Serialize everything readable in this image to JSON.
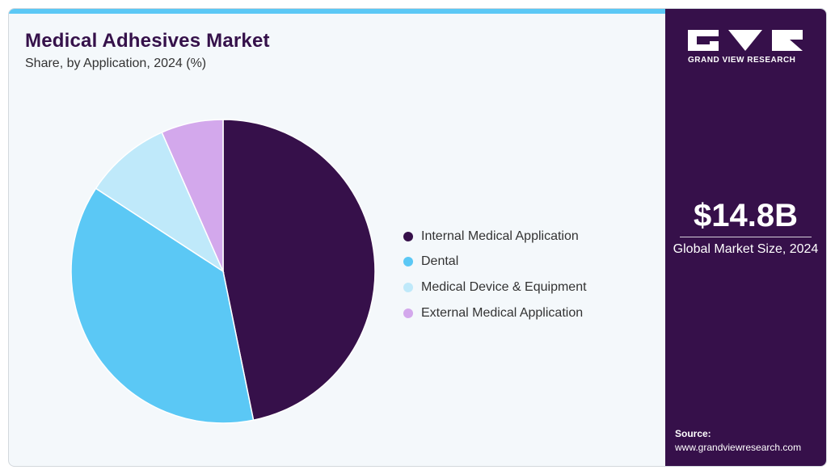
{
  "title": "Medical Adhesives Market",
  "subtitle": "Share, by Application, 2024 (%)",
  "chart_data": {
    "type": "pie",
    "title": "Medical Adhesives Market",
    "subtitle": "Share, by Application, 2024 (%)",
    "categories": [
      "Internal Medical Application",
      "Dental",
      "Medical Device & Equipment",
      "External Medical Application"
    ],
    "values": [
      46.8,
      37.4,
      9.2,
      6.6
    ],
    "colors": [
      "#36104a",
      "#5bc8f5",
      "#bfe9fa",
      "#d3a8ec"
    ],
    "start_angle_deg": 0,
    "direction": "clockwise",
    "legend_position": "right"
  },
  "brand": {
    "name": "GRAND VIEW RESEARCH"
  },
  "market": {
    "value": "$14.8B",
    "label": "Global Market Size, 2024"
  },
  "source": {
    "label": "Source:",
    "url": "www.grandviewresearch.com"
  },
  "colors": {
    "sidebar": "#36104a",
    "accent_bar": "#5bc8f5",
    "background": "#f4f8fb"
  }
}
